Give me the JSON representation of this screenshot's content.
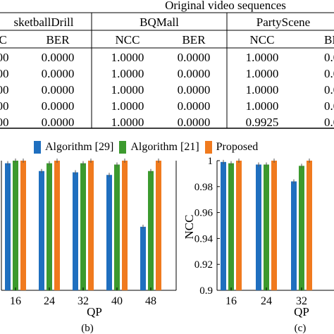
{
  "colors": {
    "algorithm29": "#1f6fbf",
    "algorithm21": "#3c9a2e",
    "proposed": "#f07a1e"
  },
  "table": {
    "group_header": "Original video sequences",
    "sequences": [
      "sketballDrill",
      "BQMall",
      "PartyScene"
    ],
    "columns": [
      "C",
      "BER",
      "NCC",
      "BER",
      "NCC",
      "BE"
    ],
    "rows": [
      [
        "00",
        "0.0000",
        "1.0000",
        "0.0000",
        "1.0000",
        "0.00"
      ],
      [
        "00",
        "0.0000",
        "1.0000",
        "0.0000",
        "1.0000",
        "0.00"
      ],
      [
        "00",
        "0.0000",
        "1.0000",
        "0.0000",
        "1.0000",
        "0.00"
      ],
      [
        "00",
        "0.0000",
        "1.0000",
        "0.0000",
        "1.0000",
        "0.00"
      ],
      [
        "00",
        "0.0000",
        "1.0000",
        "0.0000",
        "0.9925",
        "0.00"
      ]
    ]
  },
  "legend": {
    "items": [
      "Algorithm [29]",
      "Algorithm [21]",
      "Proposed"
    ]
  },
  "chart_data": [
    {
      "type": "bar",
      "panel_label": "(b)",
      "xlabel": "QP",
      "ylabel": "",
      "categories": [
        "16",
        "24",
        "32",
        "40",
        "48"
      ],
      "ylim": [
        0.9,
        1.0
      ],
      "yticks": [],
      "series": [
        {
          "name": "Algorithm [29]",
          "values": [
            0.998,
            0.992,
            0.991,
            0.989,
            0.949
          ]
        },
        {
          "name": "Algorithm [21]",
          "values": [
            1.0,
            0.998,
            0.998,
            0.997,
            0.992
          ]
        },
        {
          "name": "Proposed",
          "values": [
            1.0,
            1.0,
            1.0,
            1.0,
            1.0
          ]
        }
      ]
    },
    {
      "type": "bar",
      "panel_label": "(c)",
      "xlabel": "QP",
      "ylabel": "NCC",
      "categories": [
        "16",
        "24",
        "32"
      ],
      "ylim": [
        0.9,
        1.0
      ],
      "yticks": [
        "0.9",
        "0.92",
        "0.94",
        "0.96",
        "0.98",
        "1"
      ],
      "series": [
        {
          "name": "Algorithm [29]",
          "values": [
            0.999,
            0.997,
            0.984
          ]
        },
        {
          "name": "Algorithm [21]",
          "values": [
            0.998,
            0.997,
            0.996
          ]
        },
        {
          "name": "Proposed",
          "values": [
            1.0,
            1.0,
            1.0
          ]
        }
      ]
    }
  ]
}
